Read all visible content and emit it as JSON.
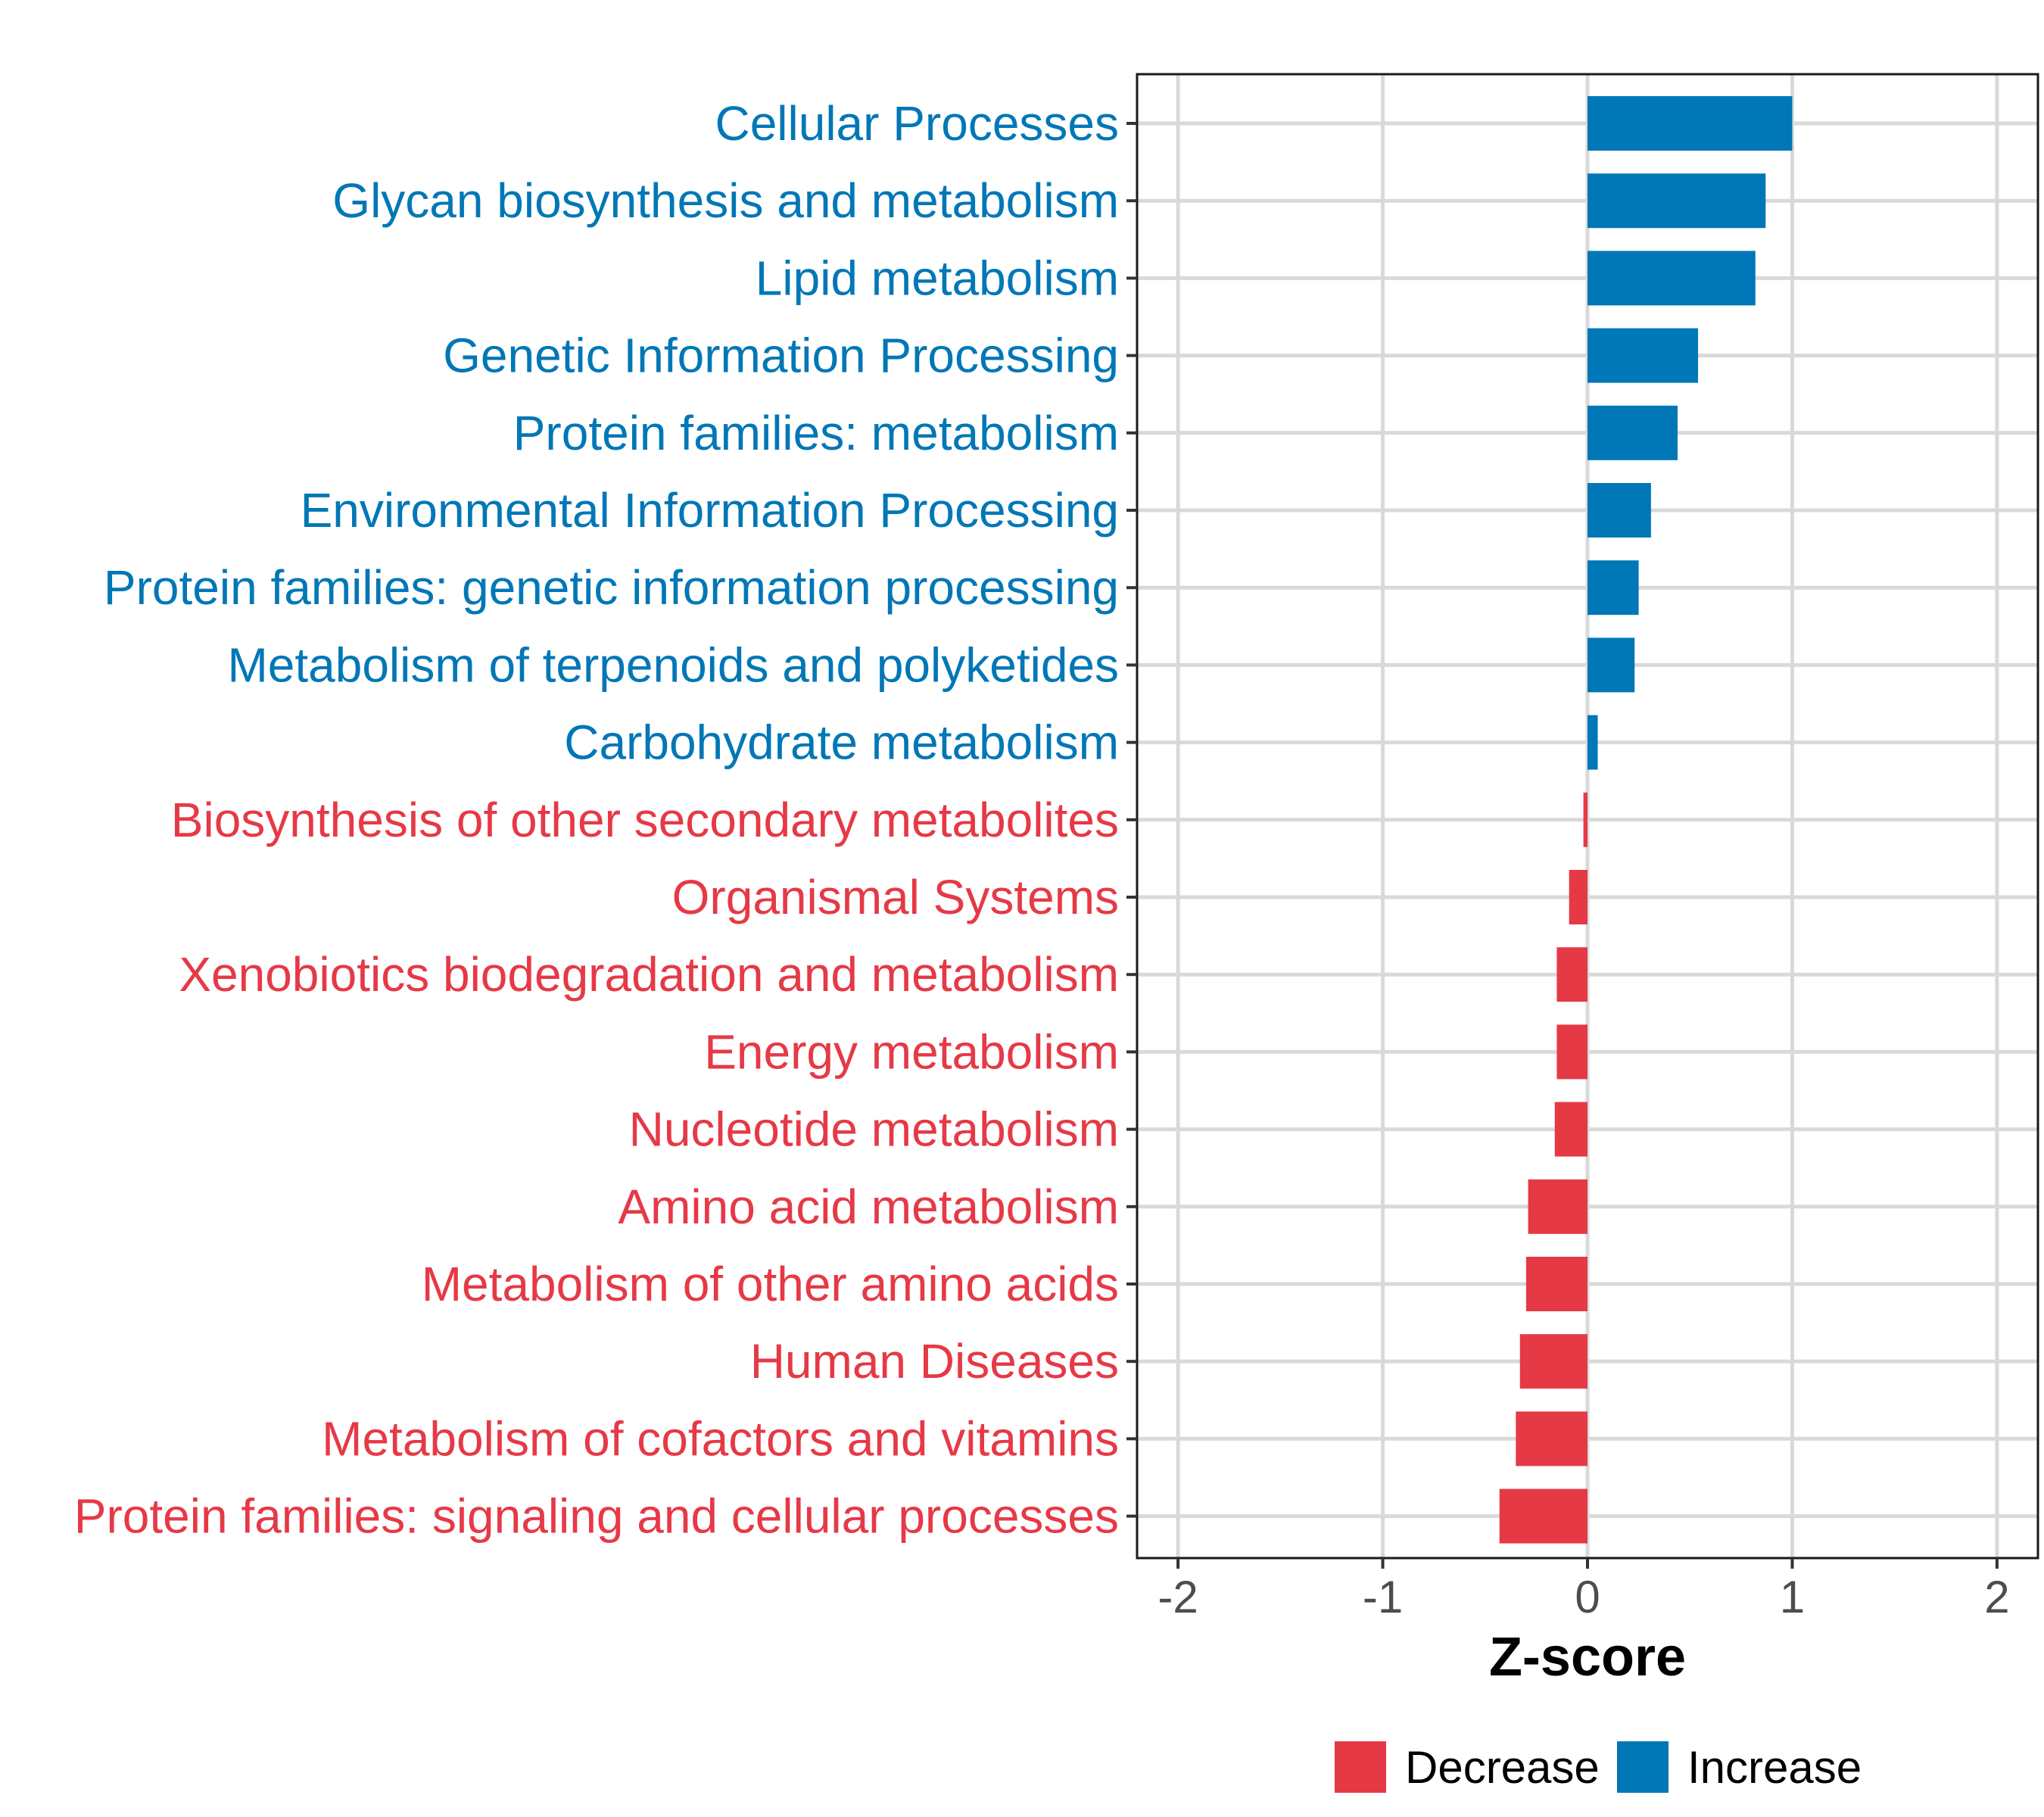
{
  "chart_data": {
    "type": "bar",
    "orientation": "horizontal",
    "xlabel": "Z-score",
    "ylabel": "",
    "xlim": [
      -2.2,
      2.2
    ],
    "xticks": [
      -2,
      -1,
      0,
      1,
      2
    ],
    "xtick_labels": [
      "-2",
      "-1",
      "0",
      "1",
      "2"
    ],
    "grid": true,
    "legend_position": "bottom",
    "colors": {
      "Decrease": "#e63946",
      "Increase": "#0077b6"
    },
    "legend": [
      {
        "name": "Decrease",
        "color": "#e63946"
      },
      {
        "name": "Increase",
        "color": "#0077b6"
      }
    ],
    "categories": [
      "Cellular Processes",
      "Glycan biosynthesis and metabolism",
      "Lipid metabolism",
      "Genetic Information Processing",
      "Protein families: metabolism",
      "Environmental Information Processing",
      "Protein families: genetic information processing",
      "Metabolism of terpenoids and polyketides",
      "Carbohydrate metabolism",
      "Biosynthesis of other secondary metabolites",
      "Organismal Systems",
      "Xenobiotics biodegradation and metabolism",
      "Energy metabolism",
      "Nucleotide metabolism",
      "Amino acid metabolism",
      "Metabolism of other amino acids",
      "Human Diseases",
      "Metabolism of cofactors and vitamins",
      "Protein families: signaling and cellular processes"
    ],
    "values": [
      1.0,
      0.87,
      0.82,
      0.54,
      0.44,
      0.31,
      0.25,
      0.23,
      0.05,
      -0.02,
      -0.09,
      -0.15,
      -0.15,
      -0.16,
      -0.29,
      -0.3,
      -0.33,
      -0.35,
      -0.43
    ],
    "groups": [
      "Increase",
      "Increase",
      "Increase",
      "Increase",
      "Increase",
      "Increase",
      "Increase",
      "Increase",
      "Increase",
      "Decrease",
      "Decrease",
      "Decrease",
      "Decrease",
      "Decrease",
      "Decrease",
      "Decrease",
      "Decrease",
      "Decrease",
      "Decrease"
    ]
  }
}
